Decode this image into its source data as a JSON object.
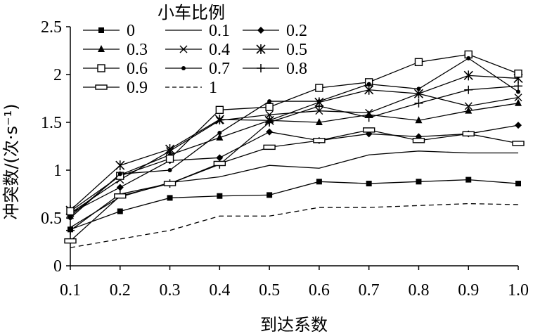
{
  "chart_data": {
    "type": "line",
    "title": "",
    "xlabel": "到达系数",
    "ylabel": "冲突数/(次·s⁻¹)",
    "legend_title": "小车比例",
    "legend_position": "top-left",
    "xlim": [
      0.1,
      1.0
    ],
    "ylim": [
      0,
      2.5
    ],
    "x": [
      0.1,
      0.2,
      0.3,
      0.4,
      0.5,
      0.6,
      0.7,
      0.8,
      0.9,
      1.0
    ],
    "x_tick_labels": [
      "0.1",
      "0.2",
      "0.3",
      "0.4",
      "0.5",
      "0.6",
      "0.7",
      "0.8",
      "0.9",
      "1.0"
    ],
    "y_tick_labels": [
      "0",
      "0.5",
      "1",
      "1.5",
      "2",
      "2.5"
    ],
    "y_ticks": [
      0,
      0.5,
      1,
      1.5,
      2,
      2.5
    ],
    "series": [
      {
        "name": "0",
        "marker": "square-filled",
        "dash": "solid",
        "values": [
          0.38,
          0.57,
          0.71,
          0.73,
          0.74,
          0.88,
          0.86,
          0.88,
          0.9,
          0.86
        ]
      },
      {
        "name": "0.1",
        "marker": "none",
        "dash": "solid",
        "values": [
          0.4,
          0.72,
          0.87,
          0.93,
          1.05,
          1.02,
          1.16,
          1.2,
          1.18,
          1.18
        ]
      },
      {
        "name": "0.2",
        "marker": "diamond-filled",
        "dash": "solid",
        "values": [
          0.55,
          0.82,
          1.1,
          1.13,
          1.4,
          1.31,
          1.38,
          1.35,
          1.38,
          1.47
        ]
      },
      {
        "name": "0.3",
        "marker": "triangle-filled",
        "dash": "solid",
        "values": [
          0.52,
          0.95,
          1.16,
          1.34,
          1.52,
          1.5,
          1.58,
          1.52,
          1.62,
          1.7
        ]
      },
      {
        "name": "0.4",
        "marker": "x",
        "dash": "solid",
        "values": [
          0.55,
          0.9,
          1.2,
          1.52,
          1.58,
          1.62,
          1.6,
          1.8,
          1.67,
          1.76
        ]
      },
      {
        "name": "0.5",
        "marker": "asterisk",
        "dash": "solid",
        "values": [
          0.58,
          1.05,
          1.22,
          1.53,
          1.52,
          1.71,
          1.84,
          1.8,
          1.99,
          1.96
        ]
      },
      {
        "name": "0.6",
        "marker": "square-open",
        "dash": "solid",
        "values": [
          0.57,
          0.94,
          1.12,
          1.63,
          1.66,
          1.86,
          1.92,
          2.13,
          2.21,
          2.01
        ]
      },
      {
        "name": "0.7",
        "marker": "dot",
        "dash": "solid",
        "values": [
          0.5,
          0.96,
          1.0,
          1.39,
          1.72,
          1.72,
          1.9,
          1.85,
          2.17,
          1.82
        ]
      },
      {
        "name": "0.8",
        "marker": "plus",
        "dash": "solid",
        "values": [
          0.37,
          0.75,
          0.86,
          1.06,
          1.5,
          1.67,
          1.55,
          1.7,
          1.84,
          1.88
        ]
      },
      {
        "name": "0.9",
        "marker": "wide-rect-open",
        "dash": "solid",
        "values": [
          0.26,
          0.73,
          0.86,
          1.07,
          1.24,
          1.31,
          1.42,
          1.31,
          1.38,
          1.28
        ]
      },
      {
        "name": "1",
        "marker": "none",
        "dash": "dashed",
        "values": [
          0.19,
          0.28,
          0.37,
          0.52,
          0.52,
          0.61,
          0.61,
          0.63,
          0.65,
          0.64
        ]
      }
    ]
  }
}
